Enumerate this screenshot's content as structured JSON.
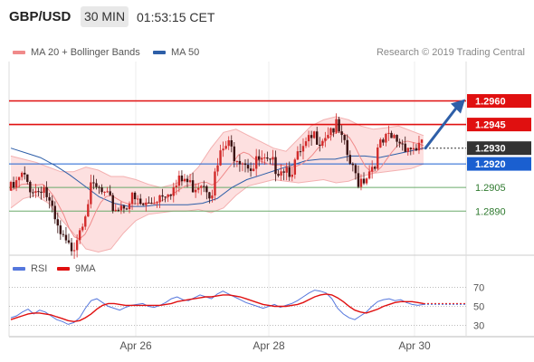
{
  "header": {
    "pair": "GBP/USD",
    "timeframe": "30 MIN",
    "time": "01:53:15 CET"
  },
  "legend": {
    "ma20_bb": "MA 20 + Bollinger Bands",
    "ma50": "MA 50",
    "credit": "Research © 2019 Trading Central"
  },
  "rsi_legend": {
    "rsi": "RSI",
    "ma9": "9MA"
  },
  "colors": {
    "up_candle": "#d22b2b",
    "down_candle": "#3a1212",
    "bollinger_fill": "#fde0e0",
    "bollinger_line": "#f3b0b0",
    "ma20": "#f08a8a",
    "ma50": "#2e5fa8",
    "resistance": "#e01010",
    "pivot": "#1a5fd0",
    "support": "#6aaa6a",
    "current_price_box": "#333333",
    "arrow": "#2e5fa8",
    "rsi_line": "#5577dd",
    "rsi_ma": "#e01010"
  },
  "chart_data": [
    {
      "type": "candlestick",
      "title": "GBP/USD 30 MIN",
      "x_ticks": [
        "Apr 26",
        "Apr 28",
        "Apr 30"
      ],
      "ylim": [
        1.2862,
        1.2985
      ],
      "levels": [
        {
          "value": "1.2960",
          "role": "resistance",
          "style": "solid"
        },
        {
          "value": "1.2945",
          "role": "resistance",
          "style": "solid"
        },
        {
          "value": "1.2930",
          "role": "current",
          "style": "dotted"
        },
        {
          "value": "1.2920",
          "role": "pivot",
          "style": "solid"
        },
        {
          "value": "1.2905",
          "role": "support",
          "style": "solid"
        },
        {
          "value": "1.2890",
          "role": "support",
          "style": "solid"
        }
      ],
      "close_path": [
        1.2903,
        1.2906,
        1.2912,
        1.2908,
        1.2905,
        1.2902,
        1.2908,
        1.2898,
        1.2886,
        1.2876,
        1.287,
        1.2866,
        1.287,
        1.288,
        1.289,
        1.2902,
        1.2904,
        1.2902,
        1.2898,
        1.2894,
        1.2892,
        1.2894,
        1.2896,
        1.2897,
        1.2895,
        1.2893,
        1.2894,
        1.2897,
        1.29,
        1.2903,
        1.2905,
        1.2904,
        1.2908,
        1.291,
        1.2906,
        1.2907,
        1.291,
        1.2908,
        1.2902,
        1.2915,
        1.2927,
        1.2932,
        1.2928,
        1.2926,
        1.2924,
        1.2921,
        1.2917,
        1.2922,
        1.292,
        1.2918,
        1.2919,
        1.2918,
        1.2919,
        1.2917,
        1.292,
        1.2926,
        1.293,
        1.2935,
        1.2938,
        1.2937,
        1.2941,
        1.2944,
        1.2942,
        1.2932,
        1.2924,
        1.2914,
        1.291,
        1.2912,
        1.2916,
        1.2922,
        1.293,
        1.2934,
        1.2935,
        1.2936,
        1.2934,
        1.2933,
        1.293,
        1.2931,
        1.293
      ],
      "ma50_path": [
        1.293,
        1.2927,
        1.2924,
        1.2919,
        1.2913,
        1.2906,
        1.2899,
        1.2895,
        1.2893,
        1.2893,
        1.2894,
        1.2894,
        1.2894,
        1.2895,
        1.2898,
        1.2905,
        1.291,
        1.2913,
        1.2916,
        1.2919,
        1.2922,
        1.2923,
        1.2923,
        1.2925,
        1.2925,
        1.2924,
        1.2926,
        1.2928,
        1.293
      ],
      "bb_upper": [
        1.2925,
        1.2923,
        1.2921,
        1.2918,
        1.2915,
        1.2915,
        1.2918,
        1.2916,
        1.2912,
        1.2912,
        1.291,
        1.2907,
        1.2905,
        1.2907,
        1.291,
        1.2918,
        1.293,
        1.294,
        1.2942,
        1.2938,
        1.2934,
        1.293,
        1.2928,
        1.2936,
        1.2944,
        1.2948,
        1.295,
        1.2948,
        1.2944,
        1.2942,
        1.2943,
        1.2944,
        1.2941,
        1.2938
      ],
      "bb_lower": [
        1.2892,
        1.2898,
        1.29,
        1.2895,
        1.2885,
        1.2876,
        1.2866,
        1.2864,
        1.2866,
        1.2876,
        1.2884,
        1.2888,
        1.2889,
        1.289,
        1.289,
        1.2891,
        1.2889,
        1.2892,
        1.29,
        1.2906,
        1.2908,
        1.291,
        1.2909,
        1.2908,
        1.2909,
        1.291,
        1.2908,
        1.2909,
        1.2912,
        1.2914,
        1.2915,
        1.2916,
        1.2917,
        1.292
      ],
      "projection": {
        "from": 1.293,
        "to": 1.296
      }
    },
    {
      "type": "line",
      "title": "RSI",
      "y_ticks": [
        "70",
        "50",
        "30"
      ],
      "ylim": [
        20,
        80
      ],
      "series": [
        {
          "name": "RSI",
          "values": [
            38,
            40,
            44,
            47,
            42,
            46,
            44,
            40,
            36,
            34,
            31,
            33,
            38,
            48,
            56,
            58,
            54,
            50,
            48,
            46,
            49,
            51,
            52,
            53,
            50,
            49,
            51,
            54,
            58,
            60,
            57,
            56,
            59,
            62,
            60,
            58,
            63,
            66,
            63,
            60,
            57,
            54,
            52,
            50,
            48,
            50,
            52,
            49,
            51,
            53,
            56,
            60,
            64,
            67,
            66,
            64,
            58,
            48,
            42,
            38,
            36,
            40,
            44,
            50,
            55,
            57,
            58,
            56,
            57,
            54,
            52,
            51,
            52
          ]
        },
        {
          "name": "9MA",
          "values": [
            36,
            38,
            40,
            42,
            43,
            43,
            42,
            41,
            39,
            37,
            35,
            34,
            35,
            38,
            42,
            47,
            51,
            53,
            53,
            52,
            51,
            51,
            51,
            51,
            51,
            51,
            51,
            52,
            53,
            55,
            56,
            57,
            58,
            59,
            60,
            60,
            61,
            62,
            62,
            61,
            60,
            58,
            56,
            54,
            52,
            51,
            50,
            50,
            50,
            51,
            52,
            54,
            57,
            60,
            62,
            63,
            62,
            59,
            55,
            50,
            46,
            44,
            43,
            45,
            47,
            50,
            52,
            54,
            55,
            55,
            55,
            54,
            53
          ]
        }
      ]
    }
  ]
}
